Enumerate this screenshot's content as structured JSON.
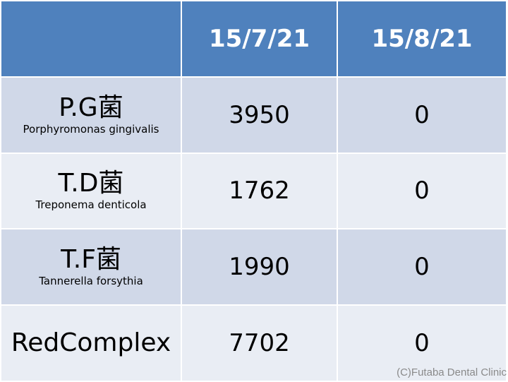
{
  "header": {
    "col0": "",
    "col1": "15/7/21",
    "col2": "15/8/21"
  },
  "rows": [
    {
      "name": "P.G菌",
      "latin": "Porphyromonas gingivalis",
      "v1": "3950",
      "v2": "0"
    },
    {
      "name": "T.D菌",
      "latin": "Treponema denticola",
      "v1": "1762",
      "v2": "0"
    },
    {
      "name": "T.F菌",
      "latin": "Tannerella forsythia",
      "v1": "1990",
      "v2": "0"
    },
    {
      "name": "RedComplex",
      "latin": "",
      "v1": "7702",
      "v2": "0"
    }
  ],
  "watermark": "(C)Futaba Dental Clinic",
  "colors": {
    "header": "#4f81bd",
    "row_dark": "#d0d8e8",
    "row_light": "#e9edf4"
  }
}
